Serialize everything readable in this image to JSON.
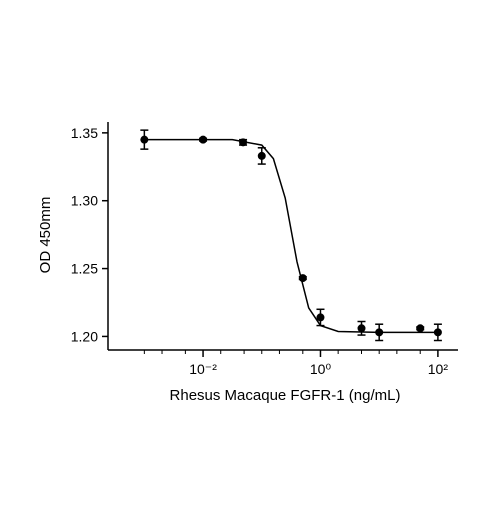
{
  "chart_data": {
    "type": "scatter",
    "xlabel": "Rhesus Macaque FGFR-1 (ng/mL)",
    "ylabel": "OD 450mm",
    "xscale": "log",
    "xlim": [
      0.00026,
      220
    ],
    "ylim": [
      1.19,
      1.358
    ],
    "xticks": [
      {
        "value": 0.01,
        "label": "10⁻²"
      },
      {
        "value": 1,
        "label": "10⁰"
      },
      {
        "value": 100,
        "label": "10²"
      }
    ],
    "xminorticks": [
      0.001,
      0.002,
      0.005,
      0.02,
      0.05,
      0.1,
      0.2,
      0.5,
      2,
      5,
      10,
      20,
      50
    ],
    "yticks": [
      {
        "value": 1.2,
        "label": "1.20"
      },
      1.25,
      {
        "value": 1.3,
        "label": "1.30"
      },
      1.35
    ],
    "color": "#000000",
    "x": [
      0.001,
      0.01,
      0.048,
      0.1,
      0.5,
      1,
      5,
      10,
      50,
      100
    ],
    "values": [
      1.345,
      1.345,
      1.343,
      1.333,
      1.243,
      1.214,
      1.206,
      1.203,
      1.206,
      1.203
    ],
    "errors": [
      0.007,
      0.001,
      0.002,
      0.006,
      0.001,
      0.006,
      0.005,
      0.006,
      0.001,
      0.006
    ],
    "curve": {
      "x": [
        0.001,
        0.01,
        0.0316,
        0.1,
        0.158,
        0.251,
        0.398,
        0.631,
        1,
        2,
        10,
        100
      ],
      "values": [
        1.345,
        1.345,
        1.345,
        1.341,
        1.331,
        1.302,
        1.255,
        1.221,
        1.208,
        1.2036,
        1.203,
        1.203
      ]
    }
  }
}
